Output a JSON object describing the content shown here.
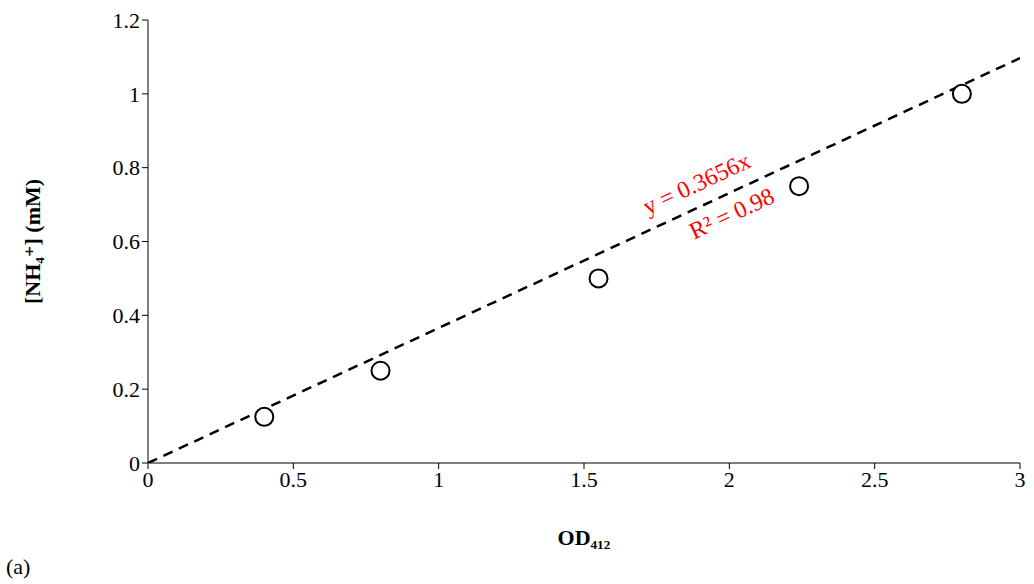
{
  "chart_data": {
    "type": "scatter",
    "x_label": "OD₄₁₂",
    "y_label": "[NH₄⁺] (mM)",
    "panel_label": "(a)",
    "x": [
      0.4,
      0.8,
      1.55,
      2.24,
      2.8
    ],
    "values": [
      0.125,
      0.25,
      0.5,
      0.75,
      1.0
    ],
    "color": "#000000",
    "marker": "circle_open",
    "xlim": [
      0,
      3
    ],
    "xticks": [
      0,
      0.5,
      1,
      1.5,
      2,
      2.5,
      3
    ],
    "ylim": [
      0,
      1.2
    ],
    "yticks": [
      0,
      0.2,
      0.4,
      0.6,
      0.8,
      1,
      1.2
    ],
    "grid": false,
    "fit": {
      "slope": 0.3656,
      "color": "#000000",
      "line_style": "dashed",
      "annotations": [
        {
          "text": "y = 0.3656x",
          "color": "#ff0000"
        },
        {
          "text": "R² = 0.98",
          "color": "#ff0000"
        }
      ]
    }
  }
}
